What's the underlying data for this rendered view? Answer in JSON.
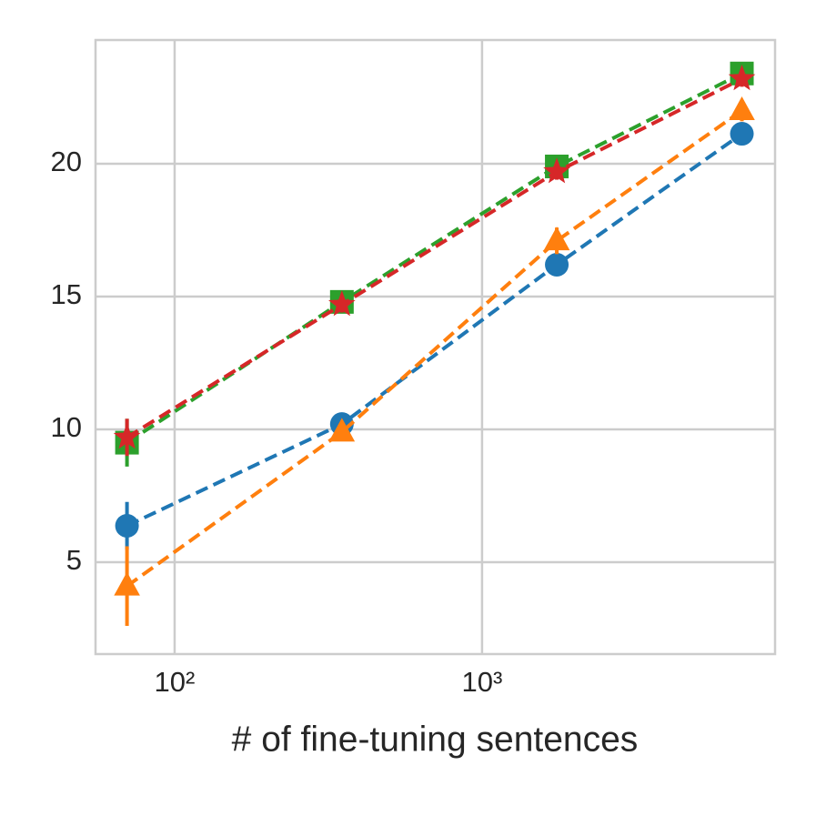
{
  "chart_data": {
    "type": "line",
    "x_label": "# of fine-tuning sentences",
    "x": [
      70,
      350,
      1750,
      7000
    ],
    "xscale": "log",
    "xlim": [
      55.3,
      8975
    ],
    "xticks": [
      {
        "value": 100,
        "label": "10²"
      },
      {
        "value": 1000,
        "label": "10³"
      }
    ],
    "ylim": [
      1.54,
      24.66
    ],
    "yticks": [
      5,
      10,
      15,
      20
    ],
    "grid": true,
    "series": [
      {
        "color": "#1f77b4",
        "marker": "circle",
        "values": [
          6.37,
          10.2,
          16.2,
          21.13
        ],
        "errors": [
          0.9,
          0.3,
          0.3,
          0.4
        ]
      },
      {
        "color": "#ff7f0e",
        "marker": "triangle",
        "values": [
          4.1,
          9.9,
          17.1,
          22.0
        ],
        "errors": [
          1.5,
          0.3,
          0.5,
          0.4
        ]
      },
      {
        "color": "#2ca02c",
        "marker": "square",
        "values": [
          9.5,
          14.8,
          19.9,
          23.4
        ],
        "errors": [
          0.9,
          0.3,
          0.4,
          0.3
        ]
      },
      {
        "color": "#d62728",
        "marker": "star",
        "values": [
          9.7,
          14.7,
          19.7,
          23.2
        ],
        "errors": [
          0.7,
          0.3,
          0.3,
          0.3
        ]
      }
    ]
  }
}
